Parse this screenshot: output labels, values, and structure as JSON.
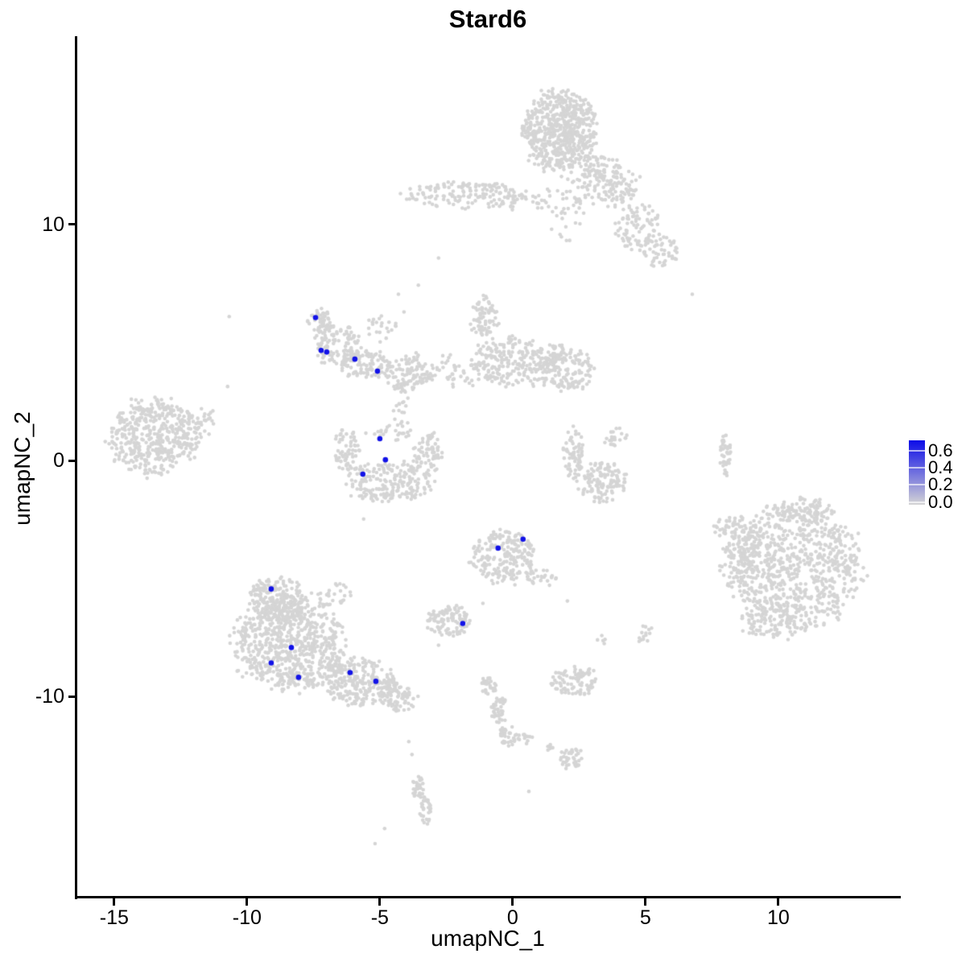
{
  "header": {
    "title": "Stard6"
  },
  "chart_data": {
    "type": "scatter",
    "title": "Stard6",
    "xlabel": "umapNC_1",
    "ylabel": "umapNC_2",
    "xlim": [
      -16.45,
      14.58
    ],
    "ylim": [
      -18.47,
      17.96
    ],
    "x_ticks": [
      -15,
      -10,
      -5,
      0,
      5,
      10
    ],
    "y_ticks": [
      10,
      0,
      -10
    ],
    "grid": false,
    "point_color_low": "#D5D5D5",
    "point_color_high": "#0C0CE8",
    "point_radius_px": 2.3,
    "highlight_radius_px": 3.3,
    "legend": {
      "position": "right",
      "tick_labels": [
        "0.6",
        "0.4",
        "0.2",
        "0.0"
      ],
      "tick_values": [
        0.6,
        0.4,
        0.2,
        0.0
      ],
      "vmin": -0.03,
      "vmax": 0.72
    },
    "clusters_note": "background cells (expression 0); each blob: center x/y in UMAP coords, rx/ry spread, n points",
    "background_clusters": [
      {
        "x": 1.76,
        "y": 13.95,
        "rx": 1.36,
        "ry": 1.7,
        "n": 620
      },
      {
        "x": 3.27,
        "y": 12.42,
        "rx": 0.7,
        "ry": 0.5,
        "n": 50
      },
      {
        "x": 3.58,
        "y": 11.57,
        "rx": 1.21,
        "ry": 0.82,
        "n": 120
      },
      {
        "x": 4.64,
        "y": 9.93,
        "rx": 0.91,
        "ry": 0.95,
        "n": 85
      },
      {
        "x": 5.49,
        "y": 8.91,
        "rx": 0.79,
        "ry": 0.75,
        "n": 55
      },
      {
        "x": 2.0,
        "y": 10.61,
        "rx": 0.79,
        "ry": 1.22,
        "n": 40
      },
      {
        "x": -1.79,
        "y": 11.22,
        "rx": 2.18,
        "ry": 0.58,
        "n": 160
      },
      {
        "x": 0.46,
        "y": 10.99,
        "rx": 0.91,
        "ry": 0.41,
        "n": 22
      },
      {
        "x": -7.24,
        "y": 5.78,
        "rx": 0.49,
        "ry": 0.58,
        "n": 55
      },
      {
        "x": -6.58,
        "y": 4.9,
        "rx": 0.79,
        "ry": 0.92,
        "n": 110
      },
      {
        "x": -5.52,
        "y": 4.08,
        "rx": 0.91,
        "ry": 0.61,
        "n": 100
      },
      {
        "x": -4.0,
        "y": 3.74,
        "rx": 1.03,
        "ry": 0.78,
        "n": 120
      },
      {
        "x": -5.06,
        "y": 5.51,
        "rx": 0.67,
        "ry": 0.54,
        "n": 22
      },
      {
        "x": -4.21,
        "y": 2.38,
        "rx": 0.27,
        "ry": 0.88,
        "n": 16
      },
      {
        "x": -1.06,
        "y": 6.02,
        "rx": 0.52,
        "ry": 0.88,
        "n": 75
      },
      {
        "x": 0.09,
        "y": 4.15,
        "rx": 1.67,
        "ry": 1.02,
        "n": 260
      },
      {
        "x": 1.97,
        "y": 3.91,
        "rx": 1.03,
        "ry": 0.95,
        "n": 150
      },
      {
        "x": -1.97,
        "y": 3.47,
        "rx": 0.55,
        "ry": 0.54,
        "n": 22
      },
      {
        "x": -2.46,
        "y": 4.08,
        "rx": 0.36,
        "ry": 0.41,
        "n": 10
      },
      {
        "x": -13.46,
        "y": 1.02,
        "rx": 1.67,
        "ry": 1.57,
        "n": 480
      },
      {
        "x": -11.67,
        "y": 1.77,
        "rx": 0.49,
        "ry": 0.82,
        "n": 25
      },
      {
        "x": -6.21,
        "y": 0.48,
        "rx": 0.52,
        "ry": 0.95,
        "n": 65
      },
      {
        "x": -4.76,
        "y": -0.88,
        "rx": 1.67,
        "ry": 0.82,
        "n": 210
      },
      {
        "x": -3.18,
        "y": 0.27,
        "rx": 0.52,
        "ry": 0.95,
        "n": 75
      },
      {
        "x": -4.7,
        "y": 1.22,
        "rx": 1.15,
        "ry": 0.44,
        "n": 26
      },
      {
        "x": 2.27,
        "y": 0.27,
        "rx": 0.39,
        "ry": 1.12,
        "n": 70
      },
      {
        "x": 3.36,
        "y": -0.92,
        "rx": 0.97,
        "ry": 0.78,
        "n": 130
      },
      {
        "x": 3.85,
        "y": 0.95,
        "rx": 0.46,
        "ry": 0.44,
        "n": 22
      },
      {
        "x": 8.0,
        "y": 0.27,
        "rx": 0.21,
        "ry": 0.95,
        "n": 42
      },
      {
        "x": -0.36,
        "y": -4.08,
        "rx": 1.21,
        "ry": 1.12,
        "n": 210
      },
      {
        "x": 1.12,
        "y": -4.97,
        "rx": 0.61,
        "ry": 0.44,
        "n": 26
      },
      {
        "x": 10.64,
        "y": -4.49,
        "rx": 2.49,
        "ry": 2.45,
        "n": 850
      },
      {
        "x": 11.0,
        "y": -2.11,
        "rx": 1.21,
        "ry": 0.51,
        "n": 90
      },
      {
        "x": 8.46,
        "y": -3.27,
        "rx": 0.61,
        "ry": 1.02,
        "n": 70
      },
      {
        "x": 9.85,
        "y": -6.87,
        "rx": 1.21,
        "ry": 0.71,
        "n": 100
      },
      {
        "x": 7.76,
        "y": -2.72,
        "rx": 0.3,
        "ry": 0.44,
        "n": 9
      },
      {
        "x": -8.85,
        "y": -5.85,
        "rx": 1.06,
        "ry": 0.95,
        "n": 200
      },
      {
        "x": -8.39,
        "y": -7.82,
        "rx": 2.0,
        "ry": 1.91,
        "n": 720
      },
      {
        "x": -5.67,
        "y": -9.35,
        "rx": 1.36,
        "ry": 0.95,
        "n": 250
      },
      {
        "x": -4.27,
        "y": -10.07,
        "rx": 0.79,
        "ry": 0.51,
        "n": 70
      },
      {
        "x": -6.82,
        "y": -5.71,
        "rx": 0.79,
        "ry": 0.61,
        "n": 30
      },
      {
        "x": -2.39,
        "y": -6.8,
        "rx": 0.85,
        "ry": 0.61,
        "n": 105
      },
      {
        "x": 2.39,
        "y": -9.35,
        "rx": 0.88,
        "ry": 0.58,
        "n": 90
      },
      {
        "x": 2.27,
        "y": -12.65,
        "rx": 0.46,
        "ry": 0.48,
        "n": 40
      },
      {
        "x": -0.88,
        "y": -9.52,
        "rx": 0.27,
        "ry": 0.41,
        "n": 30
      },
      {
        "x": -0.52,
        "y": -10.54,
        "rx": 0.27,
        "ry": 0.68,
        "n": 40
      },
      {
        "x": -0.15,
        "y": -11.63,
        "rx": 0.3,
        "ry": 0.48,
        "n": 35
      },
      {
        "x": 0.49,
        "y": -11.77,
        "rx": 0.36,
        "ry": 0.2,
        "n": 12
      },
      {
        "x": 1.46,
        "y": -12.14,
        "rx": 0.21,
        "ry": 0.17,
        "n": 6
      },
      {
        "x": -3.55,
        "y": -13.81,
        "rx": 0.24,
        "ry": 0.51,
        "n": 30
      },
      {
        "x": -3.27,
        "y": -14.8,
        "rx": 0.24,
        "ry": 0.54,
        "n": 30
      },
      {
        "x": 5.0,
        "y": -7.38,
        "rx": 0.32,
        "ry": 0.42,
        "n": 14
      },
      {
        "x": 3.36,
        "y": -7.65,
        "rx": 0.2,
        "ry": 0.25,
        "n": 5
      }
    ],
    "background_singles": [
      [
        6.76,
        7.04
      ],
      [
        -2.79,
        8.57
      ],
      [
        -3.55,
        7.42
      ],
      [
        -4.3,
        7.04
      ],
      [
        -4.09,
        6.29
      ],
      [
        -10.67,
        6.09
      ],
      [
        -10.73,
        3.13
      ],
      [
        2.06,
        -5.95
      ],
      [
        -5.61,
        -2.48
      ],
      [
        -1.12,
        -6.05
      ],
      [
        -2.79,
        -7.82
      ],
      [
        -3.91,
        -11.9
      ],
      [
        -3.79,
        -12.45
      ],
      [
        0.61,
        -14.01
      ],
      [
        -4.82,
        -15.58
      ],
      [
        -5.18,
        -16.22
      ]
    ],
    "highlight_points": [
      {
        "x": -7.42,
        "y": 6.05,
        "value": 0.7
      },
      {
        "x": -7.21,
        "y": 4.66,
        "value": 0.7
      },
      {
        "x": -7.0,
        "y": 4.59,
        "value": 0.7
      },
      {
        "x": -5.94,
        "y": 4.29,
        "value": 0.7
      },
      {
        "x": -5.09,
        "y": 3.78,
        "value": 0.7
      },
      {
        "x": -5.0,
        "y": 0.92,
        "value": 0.7
      },
      {
        "x": -4.79,
        "y": 0.03,
        "value": 0.7
      },
      {
        "x": -5.64,
        "y": -0.58,
        "value": 0.7
      },
      {
        "x": 0.39,
        "y": -3.33,
        "value": 0.7
      },
      {
        "x": -0.55,
        "y": -3.71,
        "value": 0.7
      },
      {
        "x": -9.09,
        "y": -5.44,
        "value": 0.7
      },
      {
        "x": -8.33,
        "y": -7.92,
        "value": 0.7
      },
      {
        "x": -9.09,
        "y": -8.57,
        "value": 0.7
      },
      {
        "x": -8.06,
        "y": -9.18,
        "value": 0.7
      },
      {
        "x": -6.12,
        "y": -8.98,
        "value": 0.7
      },
      {
        "x": -5.15,
        "y": -9.35,
        "value": 0.7
      },
      {
        "x": -1.88,
        "y": -6.9,
        "value": 0.7
      }
    ]
  }
}
